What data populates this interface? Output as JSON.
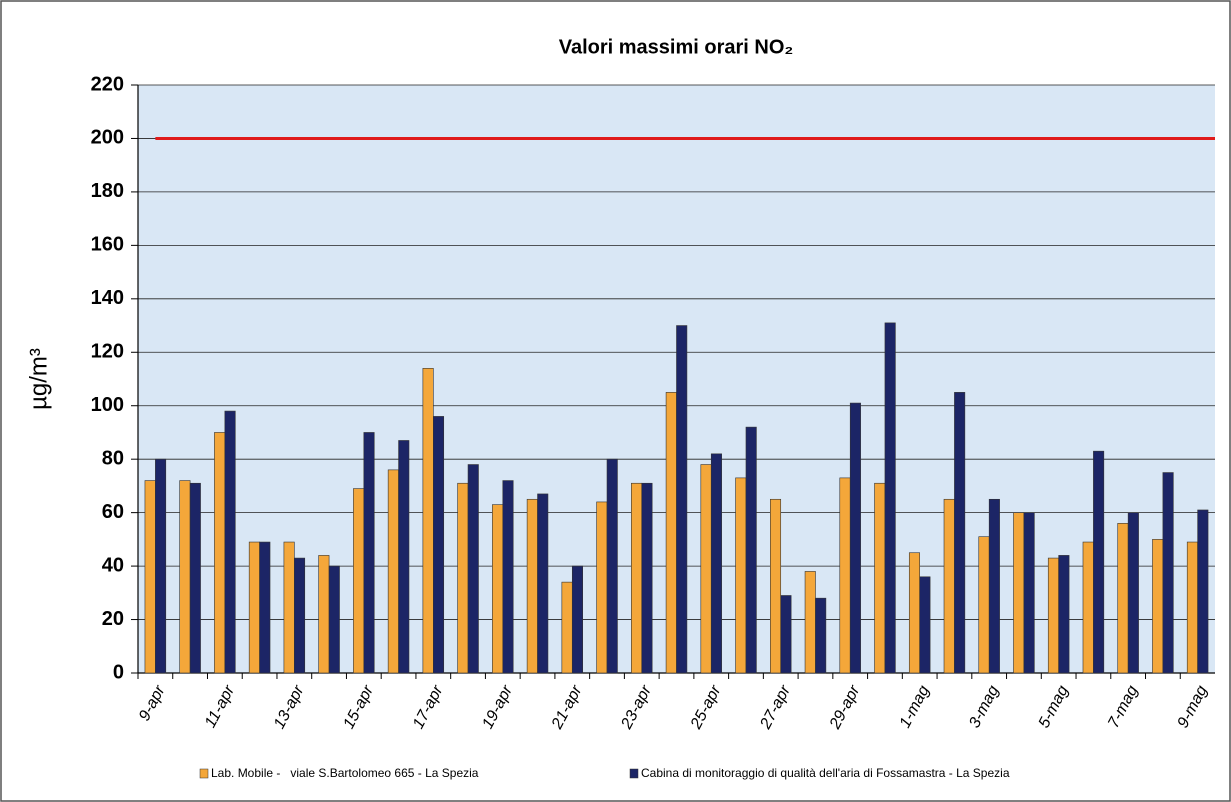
{
  "chart_data": {
    "type": "bar",
    "title": "Valori massimi orari NO₂",
    "y_label": "µg/m³",
    "categories": [
      "9-apr",
      null,
      "11-apr",
      null,
      "13-apr",
      null,
      "15-apr",
      null,
      "17-apr",
      null,
      "19-apr",
      null,
      "21-apr",
      null,
      "23-apr",
      null,
      "25-apr",
      null,
      "27-apr",
      null,
      "29-apr",
      null,
      "1-mag",
      null,
      "3-mag",
      null,
      "5-mag",
      null,
      "7-mag",
      null,
      "9-mag"
    ],
    "series": [
      {
        "name": "Lab. Mobile -   viale S.Bartolomeo 665 - La Spezia",
        "color": "#f4a73a",
        "values": [
          72,
          72,
          90,
          49,
          49,
          44,
          69,
          76,
          114,
          71,
          63,
          65,
          34,
          64,
          71,
          105,
          78,
          73,
          65,
          38,
          73,
          71,
          45,
          65,
          51,
          60,
          43,
          49,
          56,
          50,
          49
        ]
      },
      {
        "name": "Cabina di monitoraggio di qualità dell'aria di Fossamastra - La Spezia",
        "color": "#1c2566",
        "values": [
          80,
          71,
          98,
          49,
          43,
          40,
          90,
          87,
          96,
          78,
          72,
          67,
          40,
          80,
          71,
          130,
          82,
          92,
          29,
          28,
          101,
          131,
          36,
          105,
          65,
          60,
          44,
          83,
          60,
          75,
          61
        ]
      }
    ],
    "reference_line": {
      "value": 200,
      "color": "#e01b1b"
    },
    "ylim": [
      0,
      220
    ],
    "yticks": [
      0,
      20,
      40,
      60,
      80,
      100,
      120,
      140,
      160,
      180,
      200,
      220
    ],
    "grid": true
  }
}
